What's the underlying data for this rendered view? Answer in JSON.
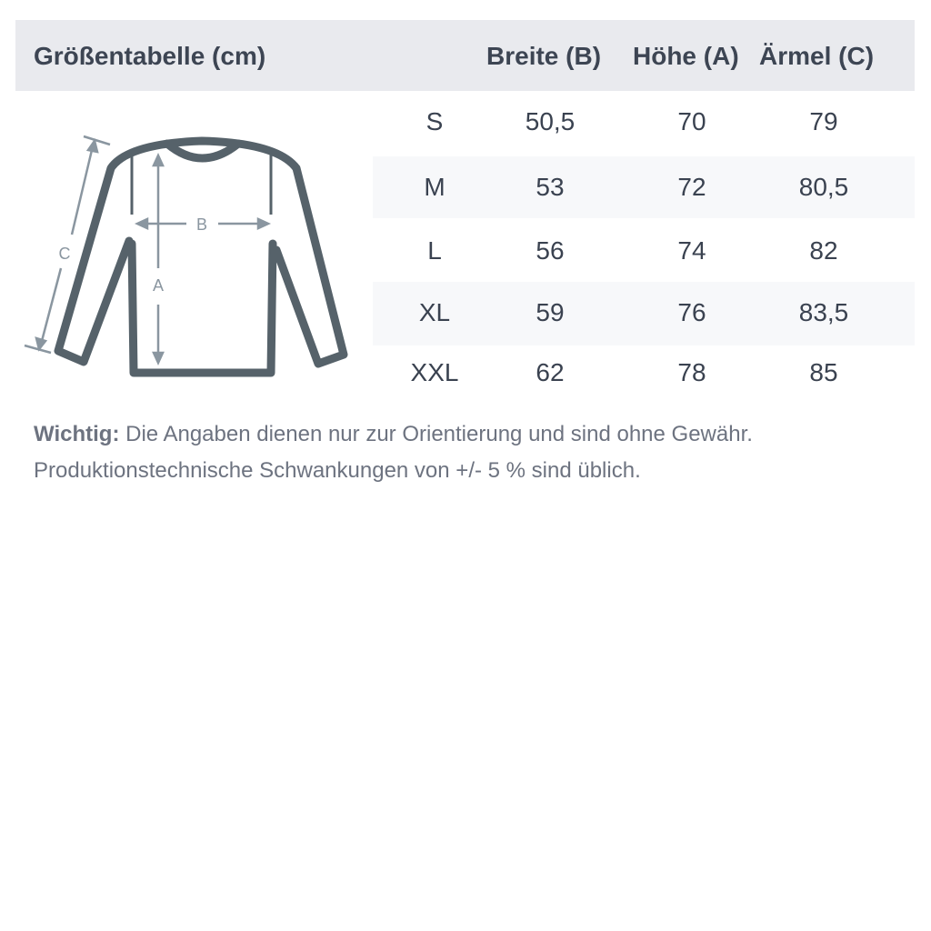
{
  "table": {
    "title": "Größentabelle (cm)",
    "columns": [
      "Breite (B)",
      "Höhe (A)",
      "Ärmel (C)"
    ],
    "rows": [
      {
        "size": "S",
        "values": [
          "50,5",
          "70",
          "79"
        ]
      },
      {
        "size": "M",
        "values": [
          "53",
          "72",
          "80,5"
        ]
      },
      {
        "size": "L",
        "values": [
          "56",
          "74",
          "82"
        ]
      },
      {
        "size": "XL",
        "values": [
          "59",
          "76",
          "83,5"
        ]
      },
      {
        "size": "XXL",
        "values": [
          "62",
          "78",
          "85"
        ]
      }
    ]
  },
  "diagram": {
    "labels": {
      "a": "A",
      "b": "B",
      "c": "C"
    },
    "icon": "sweater-icon",
    "outline_color": "#56626a",
    "arrow_color": "#8a96a0"
  },
  "note": {
    "bold": "Wichtig:",
    "line1": " Die Angaben dienen nur zur Orientierung und sind ohne Gewähr.",
    "line2": "Produktionstechnische Schwankungen von +/- 5 % sind üblich."
  }
}
